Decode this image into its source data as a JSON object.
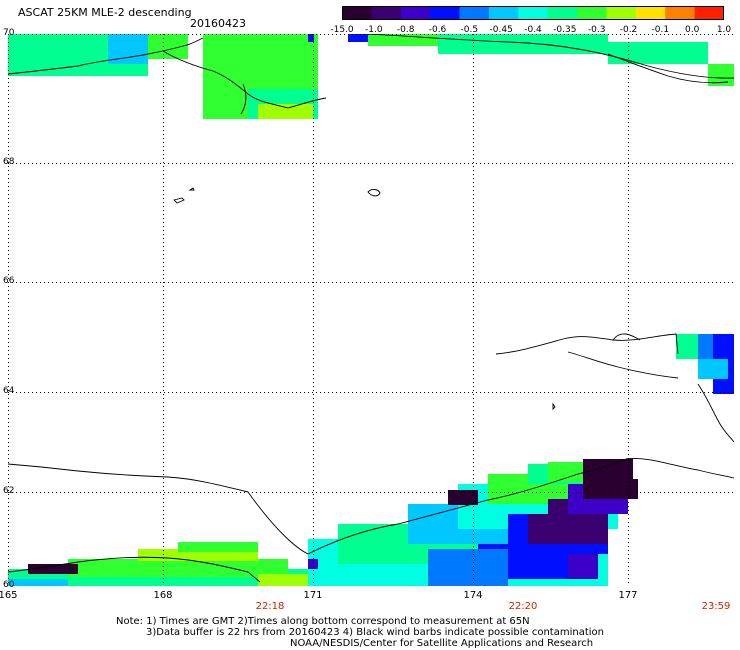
{
  "title": "ASCAT 25KM MLE-2 descending",
  "date": "20160423",
  "colorbar": {
    "labels": [
      "-15.0",
      "-1.0",
      "-0.8",
      "-0.6",
      "-0.5",
      "-0.45",
      "-0.4",
      "-0.35",
      "-0.3",
      "-0.2",
      "-0.1",
      "0.0",
      "1.0"
    ],
    "colors": [
      "#2a0030",
      "#3a0070",
      "#3c00c8",
      "#0010ff",
      "#0078ff",
      "#00c8ff",
      "#00ffe0",
      "#00ff90",
      "#30ff30",
      "#a0ff00",
      "#ffe000",
      "#ff8000",
      "#ff2000"
    ]
  },
  "axes": {
    "lat_labels": [
      "70",
      "68",
      "66",
      "64",
      "62",
      "60"
    ],
    "lon_labels": [
      "165",
      "168",
      "171",
      "174",
      "177"
    ],
    "time_labels": [
      "22:18",
      "22:20",
      "23:59"
    ]
  },
  "notes": [
    "Note: 1) Times are GMT 2)Times along bottom correspond to measurement at 65N",
    "3)Data buffer is 22 hrs from 20160423 4) Black wind barbs indicate possible contamination",
    "NOAA/NESDIS/Center for Satellite Applications and Research"
  ]
}
